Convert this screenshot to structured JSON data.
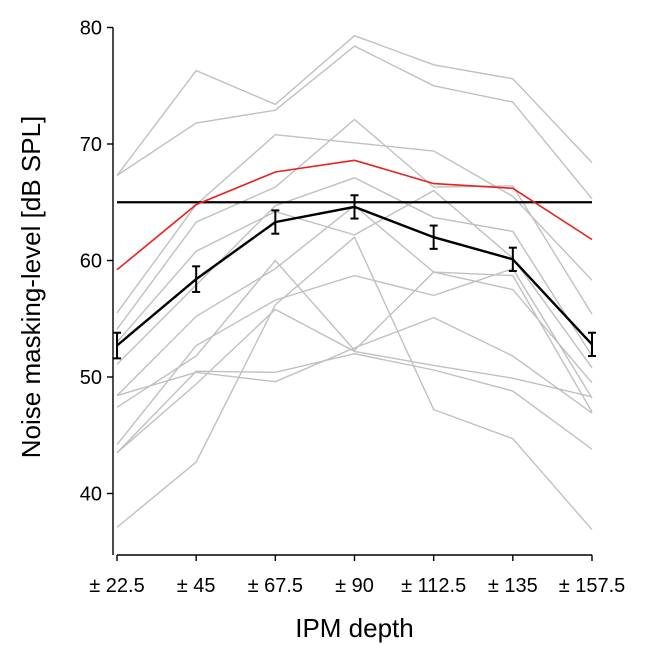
{
  "chart_data": {
    "type": "line",
    "title": "",
    "xlabel": "IPM depth",
    "ylabel": "Noise masking-level [dB SPL]",
    "categories": [
      "± 22.5",
      "± 45",
      "± 67.5",
      "± 90",
      "± 112.5",
      "± 135",
      "± 157.5"
    ],
    "ylim": [
      35,
      82
    ],
    "yticks": [
      40,
      50,
      60,
      70,
      80
    ],
    "grid": false,
    "legend": "none",
    "reference_line": 65,
    "individual_series": [
      [
        67.3,
        76.3,
        73.4,
        79.3,
        76.8,
        75.6,
        68.4
      ],
      [
        67.3,
        71.8,
        72.9,
        78.4,
        75.0,
        73.6,
        65.3
      ],
      [
        55.5,
        64.8,
        70.8,
        70.1,
        69.4,
        65.5,
        58.3
      ],
      [
        54.1,
        63.3,
        66.3,
        72.1,
        66.3,
        66.4,
        55.4
      ],
      [
        51.1,
        57.9,
        64.7,
        67.1,
        63.7,
        62.5,
        51.8
      ],
      [
        53.0,
        60.8,
        64.2,
        62.2,
        66.0,
        60.2,
        50.8
      ],
      [
        48.4,
        55.2,
        59.3,
        64.7,
        59.0,
        57.5,
        49.5
      ],
      [
        47.4,
        51.8,
        60.0,
        52.3,
        59.0,
        58.7,
        47.0
      ],
      [
        44.2,
        52.7,
        56.6,
        58.7,
        57.0,
        59.3,
        48.2
      ],
      [
        48.4,
        50.4,
        49.6,
        52.5,
        55.1,
        51.8,
        46.9
      ],
      [
        43.5,
        49.4,
        55.8,
        52.2,
        51.0,
        49.9,
        48.3
      ],
      [
        37.1,
        42.7,
        56.2,
        62.0,
        47.2,
        44.7,
        36.9
      ],
      [
        43.5,
        50.5,
        50.4,
        52.0,
        50.6,
        48.8,
        43.8
      ]
    ],
    "series": [
      {
        "values": [
          59.2,
          64.8,
          67.6,
          68.6,
          66.6,
          66.2,
          61.8
        ],
        "color": "#e8201e"
      },
      {
        "values": [
          52.7,
          58.4,
          63.3,
          64.6,
          62.0,
          60.1,
          52.8
        ],
        "color": "#000000",
        "errors": [
          1.1,
          1.1,
          1.0,
          1.0,
          1.0,
          1.0,
          1.0
        ]
      }
    ],
    "individual_color": "#c0c0c0"
  }
}
